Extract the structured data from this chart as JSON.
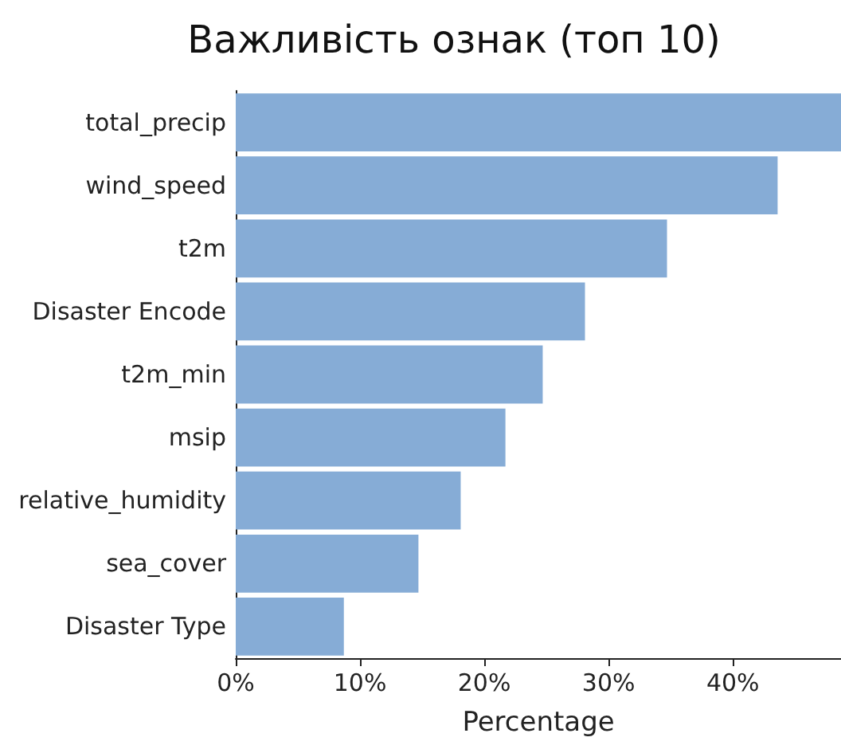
{
  "chart_data": {
    "type": "bar",
    "orientation": "horizontal",
    "title": "Важливість ознак (топ 10)",
    "xlabel": "Percentage",
    "categories": [
      "total_precip",
      "wind_speed",
      "t2m",
      "Disaster Encode",
      "t2m_min",
      "msip",
      "relative_humidity",
      "sea_cover",
      "Disaster Type"
    ],
    "values": [
      48.7,
      43.6,
      34.7,
      28.1,
      24.7,
      21.7,
      18.1,
      14.7,
      8.7
    ],
    "color": "#86acd6",
    "xlim": [
      0,
      48.7
    ],
    "xticks": [
      {
        "value": 0,
        "label": "0%"
      },
      {
        "value": 10,
        "label": "10%"
      },
      {
        "value": 20,
        "label": "20%"
      },
      {
        "value": 30,
        "label": "30%"
      },
      {
        "value": 40,
        "label": "40%"
      }
    ],
    "grid": false
  }
}
